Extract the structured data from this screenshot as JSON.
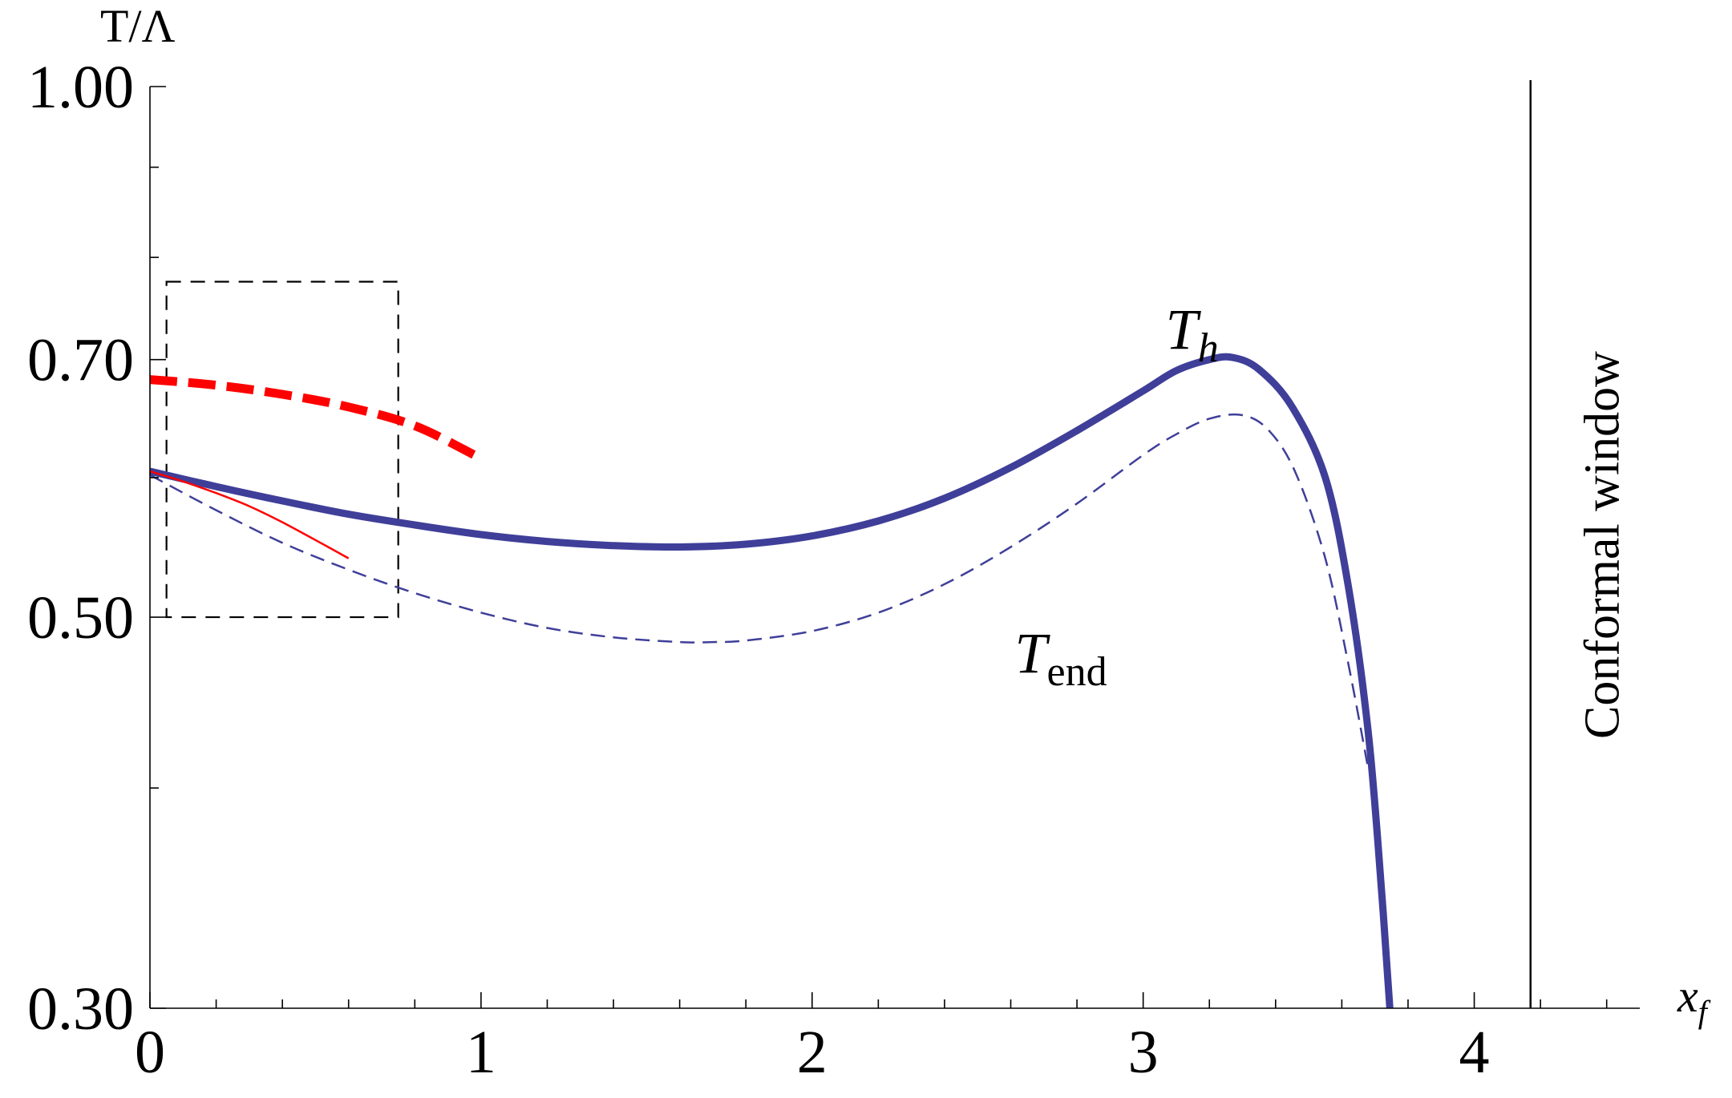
{
  "chart_data": {
    "type": "line",
    "title": "",
    "xlabel": "x_f",
    "xlabel_main": "x",
    "xlabel_sub": "f",
    "ylabel": "T/Λ",
    "xlim": [
      0,
      4.5
    ],
    "ylim": [
      0.3,
      1.0
    ],
    "y_scale": "log",
    "x_ticks": [
      0,
      1,
      2,
      3,
      4
    ],
    "x_tick_labels": [
      "0",
      "1",
      "2",
      "3",
      "4"
    ],
    "x_minor_step": 0.2,
    "y_ticks": [
      0.3,
      0.5,
      0.7,
      1.0
    ],
    "y_tick_labels": [
      "0.30",
      "0.50",
      "0.70",
      "1.00"
    ],
    "y_minor_ticks": [
      0.4,
      0.6,
      0.8,
      0.9
    ],
    "grid": false,
    "colors": {
      "blue": "#3f3f99",
      "red": "#ff0000",
      "black": "#000000"
    },
    "series": [
      {
        "name": "T_h",
        "style": "solid-thick",
        "color": "#3f3f99",
        "x": [
          0,
          0.2,
          0.4,
          0.6,
          0.8,
          1.0,
          1.2,
          1.4,
          1.6,
          1.8,
          2.0,
          2.2,
          2.4,
          2.6,
          2.8,
          3.0,
          3.1,
          3.2,
          3.27,
          3.35,
          3.45,
          3.55,
          3.62,
          3.68,
          3.72,
          3.745
        ],
        "y": [
          0.605,
          0.593,
          0.582,
          0.572,
          0.564,
          0.557,
          0.552,
          0.549,
          0.548,
          0.55,
          0.556,
          0.567,
          0.584,
          0.608,
          0.638,
          0.672,
          0.69,
          0.7,
          0.702,
          0.691,
          0.658,
          0.6,
          0.52,
          0.43,
          0.35,
          0.3
        ]
      },
      {
        "name": "T_end",
        "style": "dashed-thin",
        "color": "#3f3f99",
        "x": [
          0,
          0.2,
          0.4,
          0.6,
          0.8,
          1.0,
          1.2,
          1.4,
          1.6,
          1.7,
          1.8,
          2.0,
          2.2,
          2.4,
          2.6,
          2.8,
          3.0,
          3.1,
          3.2,
          3.3,
          3.38,
          3.46,
          3.55,
          3.62,
          3.68
        ],
        "y": [
          0.602,
          0.575,
          0.551,
          0.532,
          0.516,
          0.503,
          0.493,
          0.487,
          0.484,
          0.484,
          0.485,
          0.491,
          0.503,
          0.522,
          0.548,
          0.58,
          0.618,
          0.635,
          0.648,
          0.651,
          0.638,
          0.604,
          0.54,
          0.47,
          0.41
        ]
      },
      {
        "name": "",
        "style": "dashed-thick",
        "color": "#ff0000",
        "x": [
          0,
          0.2,
          0.4,
          0.6,
          0.8,
          0.98
        ],
        "y": [
          0.682,
          0.677,
          0.669,
          0.658,
          0.642,
          0.618
        ]
      },
      {
        "name": "",
        "style": "solid-thin",
        "color": "#ff0000",
        "x": [
          0,
          0.1,
          0.2,
          0.3,
          0.4,
          0.5,
          0.6
        ],
        "y": [
          0.605,
          0.597,
          0.588,
          0.578,
          0.566,
          0.553,
          0.54
        ]
      }
    ],
    "box": {
      "x": [
        0.05,
        0.75
      ],
      "y": [
        0.5,
        0.775
      ]
    },
    "vline": {
      "x": 4.17,
      "label": "Conformal window"
    },
    "annotations": [
      {
        "main": "T",
        "sub": "h",
        "x": 3.0,
        "y": 0.725
      },
      {
        "main": "T",
        "sub": "end",
        "x": 2.6,
        "y": 0.475
      }
    ]
  }
}
